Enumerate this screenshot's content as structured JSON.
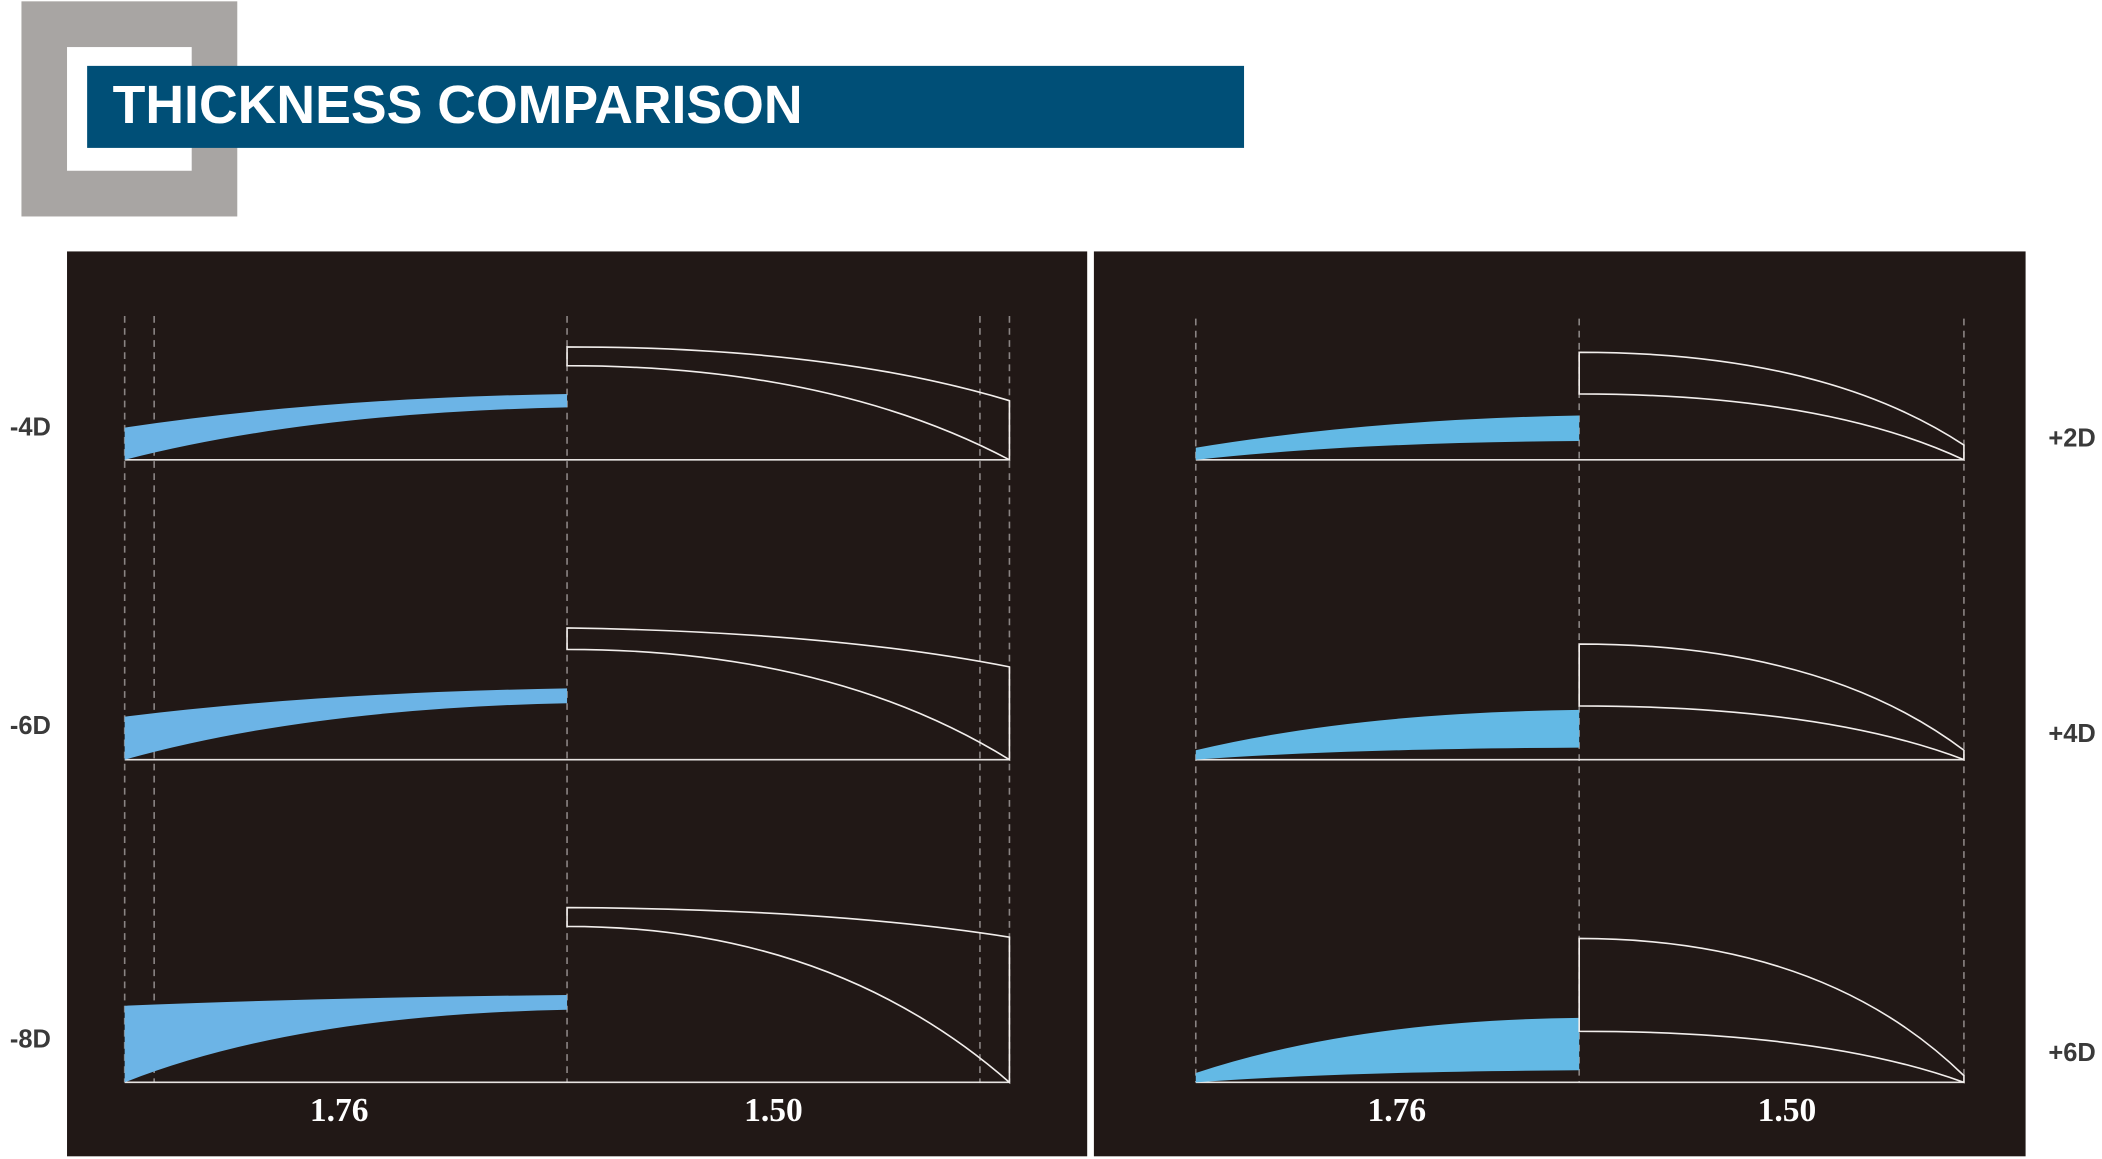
{
  "header": {
    "title": "THICKNESS COMPARISON"
  },
  "panels": [
    {
      "rows": [
        "-4D",
        "-6D",
        "-8D"
      ],
      "columns": [
        "1.76",
        "1.50"
      ]
    },
    {
      "rows": [
        "+2D",
        "+4D",
        "+6D"
      ],
      "columns": [
        "1.76",
        "1.50"
      ]
    }
  ]
}
